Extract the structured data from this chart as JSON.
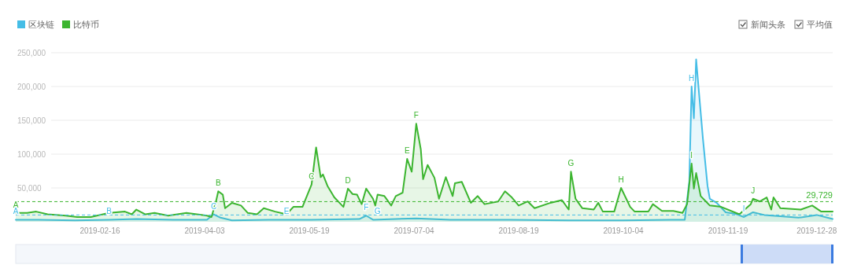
{
  "chart_data": {
    "type": "area",
    "legend": "top left",
    "grid": "y",
    "xlim": [
      "2019-01-10",
      "2020-01-04"
    ],
    "xticks": [
      "2019-02-16",
      "2019-04-03",
      "2019-05-19",
      "2019-07-04",
      "2019-08-19",
      "2019-10-04",
      "2019-11-19",
      "2019-12-28"
    ],
    "ylim": [
      0,
      250000
    ],
    "yticks": [
      {
        "value": 50000,
        "label": "50,000"
      },
      {
        "value": 100000,
        "label": "100,000"
      },
      {
        "value": 150000,
        "label": "150,000"
      },
      {
        "value": 200000,
        "label": "200,000"
      },
      {
        "value": 250000,
        "label": "250,000"
      }
    ],
    "series": [
      {
        "name": "区块链",
        "color": "#45bde6",
        "x": [
          "2019-01-10",
          "2019-01-20",
          "2019-02-05",
          "2019-02-20",
          "2019-03-04",
          "2019-03-20",
          "2019-04-04",
          "2019-04-07",
          "2019-04-10",
          "2019-04-15",
          "2019-05-01",
          "2019-05-20",
          "2019-06-10",
          "2019-06-13",
          "2019-06-16",
          "2019-07-05",
          "2019-07-20",
          "2019-08-15",
          "2019-09-10",
          "2019-10-04",
          "2019-10-25",
          "2019-10-31",
          "2019-11-02",
          "2019-11-03",
          "2019-11-04",
          "2019-11-05",
          "2019-11-08",
          "2019-11-10",
          "2019-11-11",
          "2019-11-14",
          "2019-11-18",
          "2019-11-22",
          "2019-11-26",
          "2019-11-30",
          "2019-12-05",
          "2019-12-12",
          "2019-12-20",
          "2019-12-28",
          "2020-01-04"
        ],
        "values": [
          3000,
          3000,
          2000,
          3000,
          4000,
          3000,
          3000,
          11000,
          6000,
          2000,
          3000,
          3000,
          4000,
          9000,
          3000,
          5000,
          3000,
          3000,
          2000,
          2000,
          3000,
          3000,
          60000,
          200000,
          153000,
          240000,
          122000,
          53000,
          34000,
          28000,
          14000,
          12000,
          7000,
          14000,
          10000,
          8000,
          6000,
          10000,
          4000
        ]
      },
      {
        "name": "比特币",
        "color": "#3cb530",
        "x": [
          "2019-01-10",
          "2019-01-15",
          "2019-01-19",
          "2019-01-24",
          "2019-02-01",
          "2019-02-06",
          "2019-02-12",
          "2019-02-20",
          "2019-02-27",
          "2019-03-02",
          "2019-03-04",
          "2019-03-08",
          "2019-03-12",
          "2019-03-18",
          "2019-03-26",
          "2019-04-04",
          "2019-04-06",
          "2019-04-08",
          "2019-04-09",
          "2019-04-11",
          "2019-04-12",
          "2019-04-15",
          "2019-04-19",
          "2019-04-22",
          "2019-04-26",
          "2019-04-29",
          "2019-05-04",
          "2019-05-09",
          "2019-05-12",
          "2019-05-16",
          "2019-05-20",
          "2019-05-22",
          "2019-05-24",
          "2019-05-25",
          "2019-05-27",
          "2019-05-30",
          "2019-06-03",
          "2019-06-05",
          "2019-06-07",
          "2019-06-09",
          "2019-06-11",
          "2019-06-13",
          "2019-06-16",
          "2019-06-17",
          "2019-06-18",
          "2019-06-21",
          "2019-06-24",
          "2019-06-26",
          "2019-06-29",
          "2019-07-01",
          "2019-07-03",
          "2019-07-05",
          "2019-07-07",
          "2019-07-08",
          "2019-07-10",
          "2019-07-13",
          "2019-07-15",
          "2019-07-18",
          "2019-07-21",
          "2019-07-22",
          "2019-07-25",
          "2019-07-29",
          "2019-08-01",
          "2019-08-04",
          "2019-08-10",
          "2019-08-13",
          "2019-08-16",
          "2019-08-19",
          "2019-08-23",
          "2019-08-26",
          "2019-09-02",
          "2019-09-07",
          "2019-09-10",
          "2019-09-11",
          "2019-09-13",
          "2019-09-16",
          "2019-09-21",
          "2019-09-23",
          "2019-09-25",
          "2019-09-30",
          "2019-10-03",
          "2019-10-07",
          "2019-10-09",
          "2019-10-15",
          "2019-10-17",
          "2019-10-21",
          "2019-10-26",
          "2019-10-30",
          "2019-11-01",
          "2019-11-03",
          "2019-11-04",
          "2019-11-05",
          "2019-11-07",
          "2019-11-11",
          "2019-11-16",
          "2019-11-24",
          "2019-11-29",
          "2019-11-30",
          "2019-12-03",
          "2019-12-06",
          "2019-12-08",
          "2019-12-09",
          "2019-12-12",
          "2019-12-21",
          "2019-12-26",
          "2019-12-30",
          "2020-01-04"
        ],
        "values": [
          13000,
          13000,
          15000,
          11000,
          9000,
          7000,
          7000,
          13000,
          15000,
          11000,
          18000,
          11000,
          13000,
          9000,
          13000,
          9000,
          7000,
          30000,
          45000,
          40000,
          20000,
          28000,
          24000,
          13000,
          11000,
          20000,
          15000,
          11000,
          22000,
          22000,
          55000,
          110000,
          66000,
          70000,
          53000,
          36000,
          22000,
          49000,
          41000,
          40000,
          26000,
          49000,
          34000,
          24000,
          40000,
          38000,
          24000,
          38000,
          43000,
          93000,
          74000,
          145000,
          107000,
          63000,
          84000,
          65000,
          34000,
          66000,
          38000,
          57000,
          59000,
          28000,
          38000,
          26000,
          30000,
          45000,
          36000,
          24000,
          30000,
          20000,
          28000,
          32000,
          18000,
          74000,
          34000,
          20000,
          18000,
          28000,
          15000,
          15000,
          50000,
          22000,
          15000,
          15000,
          26000,
          16000,
          16000,
          13000,
          26000,
          86000,
          49000,
          72000,
          38000,
          24000,
          22000,
          11000,
          26000,
          34000,
          30000,
          36000,
          18000,
          36000,
          20000,
          18000,
          24000,
          15000,
          15000
        ]
      }
    ],
    "ref_lines": [
      {
        "axis": "y",
        "value": 29729,
        "label": "29,729",
        "color": "#3cb530",
        "line_style": "dashed"
      },
      {
        "axis": "y",
        "value": 10000,
        "label": null,
        "color": "#45bde6",
        "line_style": "dashed"
      }
    ],
    "annotations": [
      "新闻头条",
      "平均值",
      {
        "text": "A",
        "x": "2019-01-10",
        "y": 13000
      },
      {
        "text": "B",
        "x": "2019-04-09",
        "y": 45000
      },
      {
        "text": "C",
        "x": "2019-05-20",
        "y": 55000
      },
      {
        "text": "D",
        "x": "2019-06-05",
        "y": 49000
      },
      {
        "text": "E",
        "x": "2019-07-01",
        "y": 93000
      },
      {
        "text": "F",
        "x": "2019-07-05",
        "y": 145000
      },
      {
        "text": "G",
        "x": "2019-09-11",
        "y": 74000
      },
      {
        "text": "H",
        "x": "2019-10-03",
        "y": 50000
      },
      {
        "text": "I",
        "x": "2019-11-03",
        "y": 86000
      },
      {
        "text": "J",
        "x": "2019-11-30",
        "y": 34000
      },
      {
        "text": "A",
        "x": "2019-01-10",
        "y": 3000
      },
      {
        "text": "B",
        "x": "2019-02-20",
        "y": 3000
      },
      {
        "text": "C",
        "x": "2019-04-07",
        "y": 11000
      },
      {
        "text": "E",
        "x": "2019-05-09",
        "y": 3000
      },
      {
        "text": "F",
        "x": "2019-06-13",
        "y": 9000
      },
      {
        "text": "G",
        "x": "2019-06-18",
        "y": 3000
      },
      {
        "text": "H",
        "x": "2019-11-03",
        "y": 200000
      },
      {
        "text": "I",
        "x": "2019-11-26",
        "y": 7000
      }
    ]
  }
}
